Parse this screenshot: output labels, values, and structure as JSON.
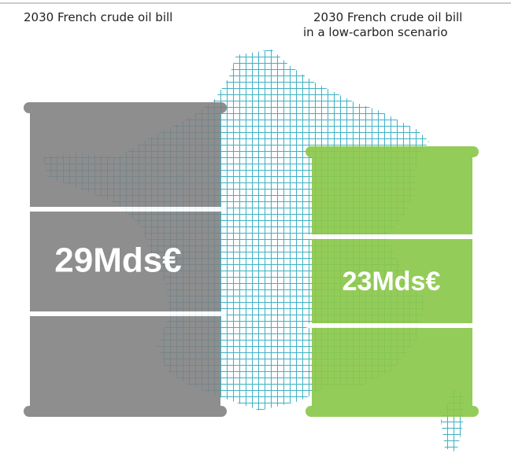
{
  "header": {
    "left_title": "2030 French crude oil bill",
    "right_title": [
      "2030 French crude oil bill",
      "in a low-carbon scenario"
    ]
  },
  "barrels": [
    {
      "label": "29Mds€"
    },
    {
      "label": "23Mds€"
    }
  ]
}
